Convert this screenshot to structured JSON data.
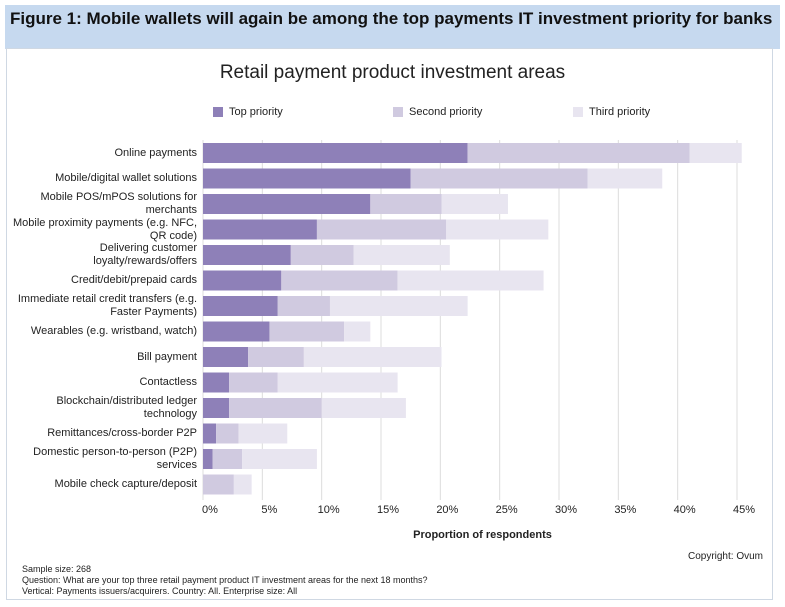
{
  "figure_title": "Figure 1: Mobile wallets will again be among the top payments IT investment priority for banks",
  "chart_data": {
    "type": "bar",
    "orientation": "horizontal",
    "stacked": true,
    "title": "Retail payment product investment areas",
    "xlabel": "Proportion of respondents",
    "ylabel": "",
    "xlim": [
      0,
      45
    ],
    "x_ticks": [
      "0%",
      "5%",
      "10%",
      "15%",
      "20%",
      "25%",
      "30%",
      "35%",
      "40%",
      "45%"
    ],
    "grid": "vertical",
    "legend_position": "top",
    "categories": [
      "Online payments",
      "Mobile/digital wallet solutions",
      "Mobile POS/mPOS solutions for merchants",
      "Mobile proximity payments (e.g. NFC, QR code)",
      "Delivering customer loyalty/rewards/offers",
      "Credit/debit/prepaid cards",
      "Immediate retail credit transfers (e.g. Faster Payments)",
      "Wearables (e.g. wristband, watch)",
      "Bill payment",
      "Contactless",
      "Blockchain/distributed ledger technology",
      "Remittances/cross-border P2P",
      "Domestic person-to-person (P2P) services",
      "Mobile check capture/deposit"
    ],
    "series": [
      {
        "name": "Top priority",
        "color": "#8e80b8",
        "values": [
          22.3,
          17.5,
          14.1,
          9.6,
          7.4,
          6.6,
          6.3,
          5.6,
          3.8,
          2.2,
          2.2,
          1.1,
          0.8,
          0
        ]
      },
      {
        "name": "Second priority",
        "color": "#d0cae0",
        "values": [
          18.7,
          14.9,
          6.0,
          10.9,
          5.3,
          9.8,
          4.4,
          6.3,
          4.7,
          4.1,
          7.8,
          1.9,
          2.5,
          2.6
        ]
      },
      {
        "name": "Third priority",
        "color": "#e8e5f0",
        "values": [
          4.4,
          6.3,
          5.6,
          8.6,
          8.1,
          12.3,
          11.6,
          2.2,
          11.6,
          10.1,
          7.1,
          4.1,
          6.3,
          1.5
        ]
      }
    ]
  },
  "copyright": "Copyright: Ovum",
  "notes": [
    "Sample size: 268",
    "Question: What are your top three retail payment product IT investment areas for the next 18 months?",
    "Vertical: Payments issuers/acquirers. Country: All. Enterprise size: All"
  ]
}
